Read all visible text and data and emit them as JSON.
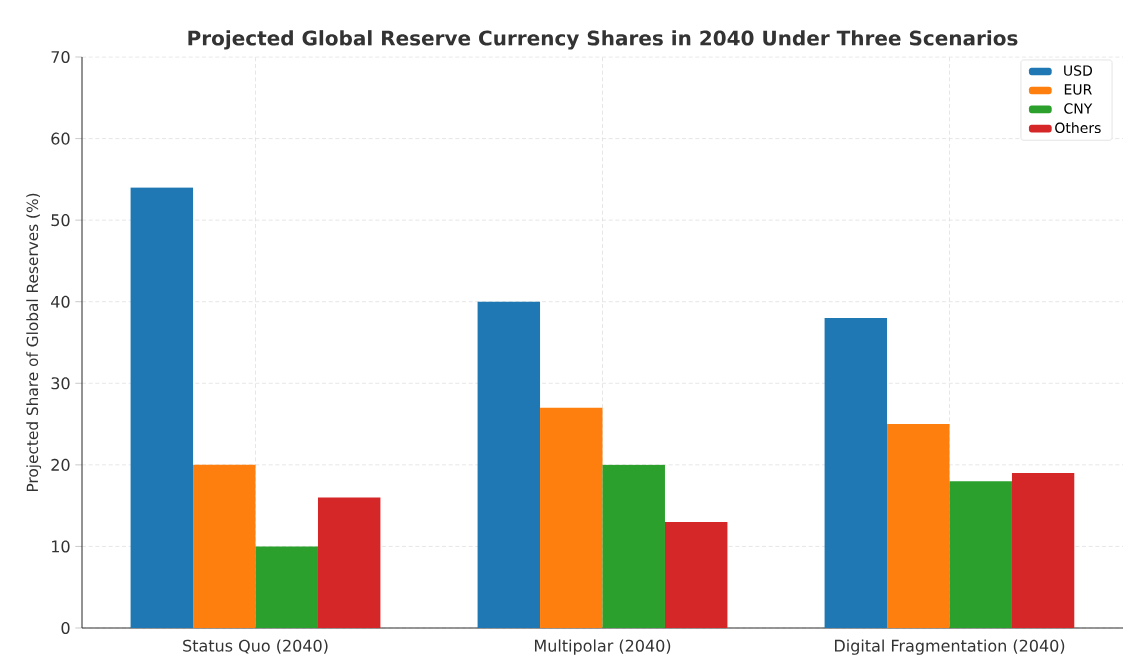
{
  "chart_data": {
    "type": "bar",
    "title": "Projected Global Reserve Currency Shares in 2040 Under Three Scenarios",
    "ylabel": "Projected Share of Global Reserves (%)",
    "categories": [
      "Status Quo (2040)",
      "Multipolar (2040)",
      "Digital Fragmentation (2040)"
    ],
    "series": [
      {
        "name": "USD",
        "color": "#1f77b4",
        "values": [
          54,
          40,
          38
        ]
      },
      {
        "name": "EUR",
        "color": "#ff7f0e",
        "values": [
          20,
          27,
          25
        ]
      },
      {
        "name": "CNY",
        "color": "#2ca02c",
        "values": [
          10,
          20,
          18
        ]
      },
      {
        "name": "Others",
        "color": "#d62728",
        "values": [
          16,
          13,
          19
        ]
      }
    ],
    "ylim": [
      0,
      70
    ],
    "yticks": [
      0,
      10,
      20,
      30,
      40,
      50,
      60,
      70
    ],
    "grid": true,
    "legend": "top right"
  }
}
